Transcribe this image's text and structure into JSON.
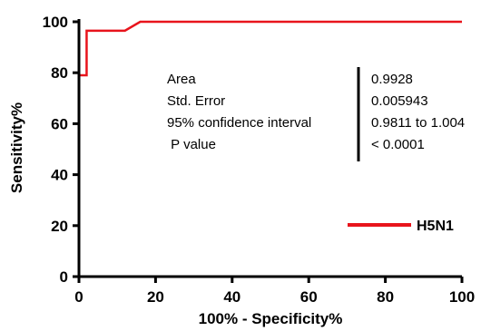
{
  "chart_data": {
    "type": "line",
    "xlabel": "100% - Specificity%",
    "ylabel": "Sensitivity%",
    "xlim": [
      0,
      100
    ],
    "ylim": [
      0,
      100
    ],
    "x_ticks": [
      "0",
      "20",
      "40",
      "60",
      "80",
      "100"
    ],
    "y_ticks": [
      "0",
      "20",
      "40",
      "60",
      "80",
      "100"
    ],
    "series": [
      {
        "name": "H5N1",
        "color": "#e8141c",
        "x": [
          0,
          0,
          0.5,
          0.5,
          2,
          2,
          12,
          16,
          100
        ],
        "y": [
          0,
          79,
          79,
          79,
          79,
          96.5,
          96.5,
          100,
          100
        ]
      }
    ],
    "legend_position": "bottom-right",
    "stats": [
      {
        "label": "Area",
        "value": "0.9928"
      },
      {
        "label": "Std. Error",
        "value": "0.005943"
      },
      {
        "label": "95% confidence interval",
        "value": "0.9811 to 1.004"
      },
      {
        "label": " P value",
        "value": "< 0.0001"
      }
    ]
  }
}
